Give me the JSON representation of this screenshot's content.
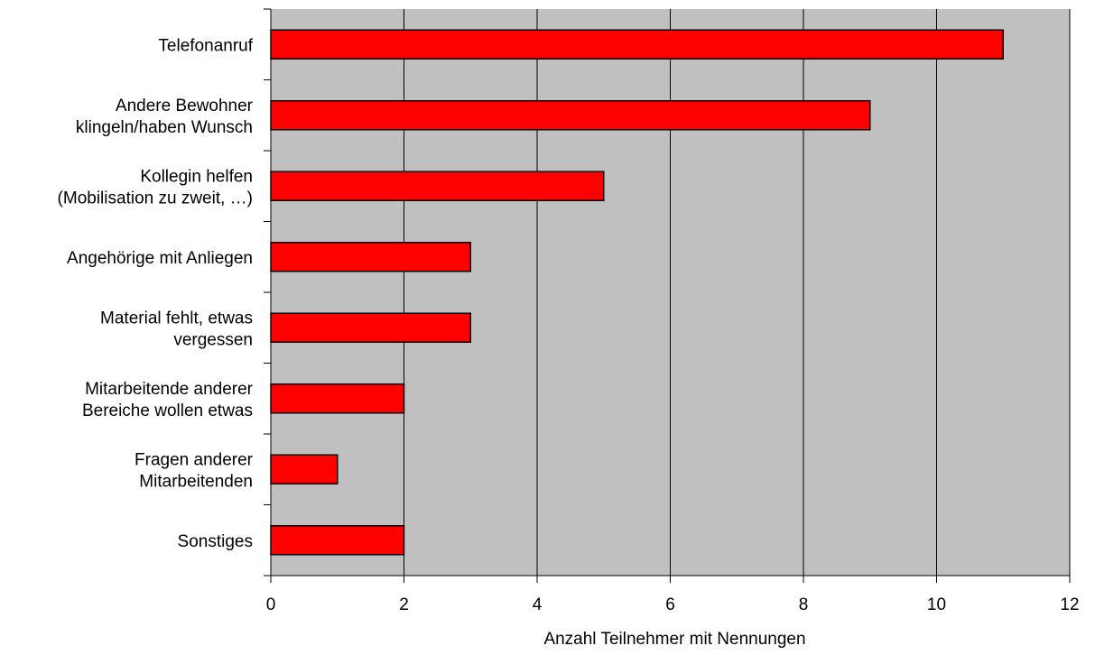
{
  "chart_data": {
    "type": "bar",
    "orientation": "horizontal",
    "categories": [
      [
        "Telefonanruf"
      ],
      [
        "Andere Bewohner",
        "klingeln/haben Wunsch"
      ],
      [
        "Kollegin helfen",
        "(Mobilisation zu zweit, …)"
      ],
      [
        "Angehörige mit Anliegen"
      ],
      [
        "Material fehlt, etwas",
        "vergessen"
      ],
      [
        "Mitarbeitende anderer",
        "Bereiche wollen etwas"
      ],
      [
        "Fragen anderer",
        "Mitarbeitenden"
      ],
      [
        "Sonstiges"
      ]
    ],
    "values": [
      11,
      9,
      5,
      3,
      3,
      2,
      1,
      2
    ],
    "xlabel": "Anzahl Teilnehmer mit Nennungen",
    "xlim": [
      0,
      12
    ],
    "xticks": [
      0,
      2,
      4,
      6,
      8,
      10,
      12
    ],
    "grid": true,
    "colors": {
      "bar": "#ff0000",
      "bar_edge": "#000000",
      "plot_background": "#c0c0c0",
      "gridline": "#000000"
    }
  }
}
